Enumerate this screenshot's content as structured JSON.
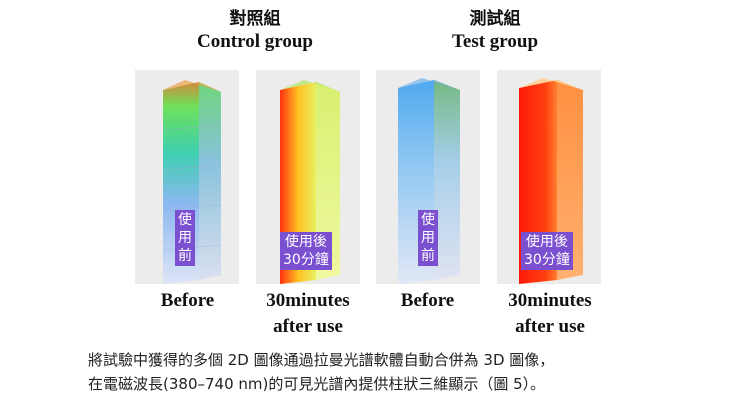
{
  "groups": {
    "control": {
      "title_cn": "對照組",
      "title_en": "Control group"
    },
    "test": {
      "title_cn": "測試組",
      "title_en": "Test group"
    }
  },
  "panels": [
    {
      "tag": "使\n用\n前",
      "caption": "Before"
    },
    {
      "tag": "使用後\n30分鐘",
      "caption": "30minutes\nafter use"
    },
    {
      "tag": "使\n用\n前",
      "caption": "Before"
    },
    {
      "tag": "使用後\n30分鐘",
      "caption": "30minutes\nafter use"
    }
  ],
  "description": {
    "line1": "將試驗中獲得的多個 2D 圖像通過拉曼光譜軟體自動合併為 3D 圖像，",
    "line2": "在電磁波長(380–740 nm)的可見光譜內提供柱狀三維顯示（圖 5）。"
  },
  "colors": {
    "tag_bg": "#7a4fd0",
    "panel_bg": "#ececec"
  }
}
